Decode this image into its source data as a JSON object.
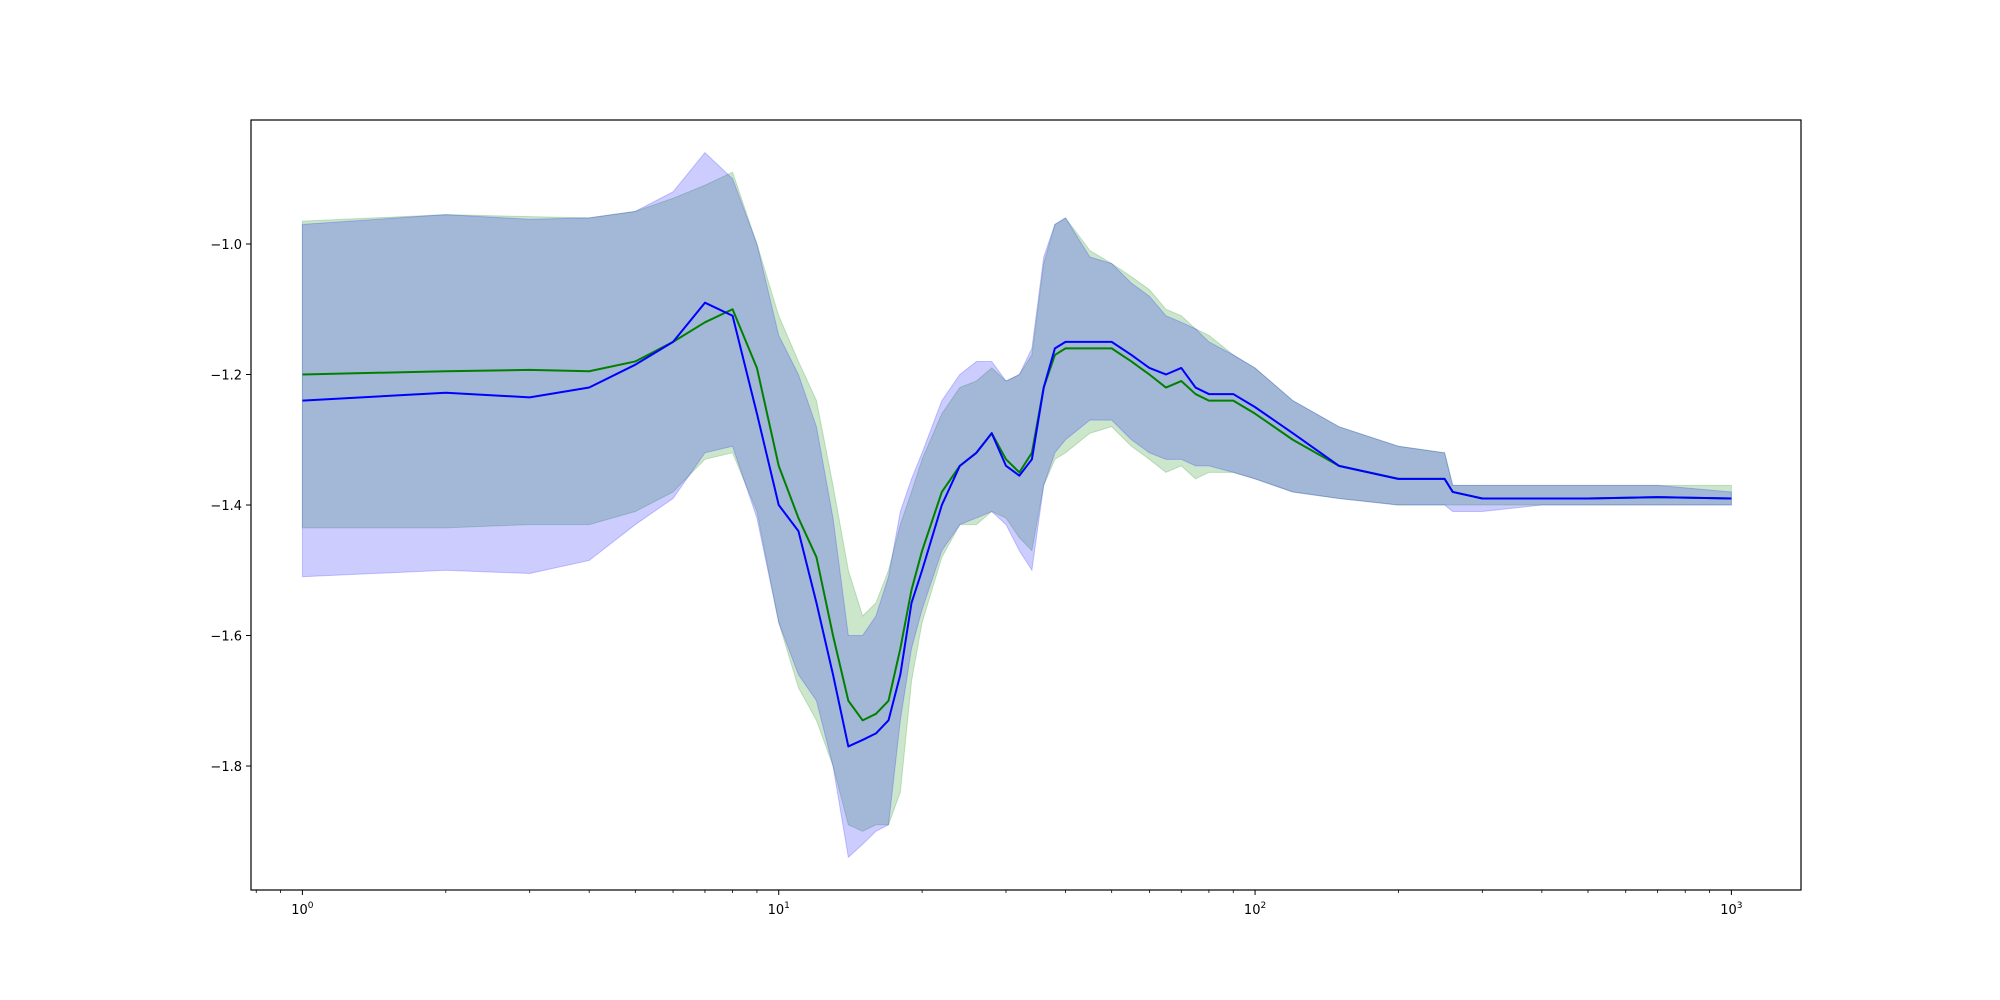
{
  "chart_data": {
    "type": "line",
    "title": "",
    "xlabel": "",
    "ylabel": "",
    "xscale": "log",
    "xlim": [
      0.78,
      1400
    ],
    "ylim": [
      -1.99,
      -0.81
    ],
    "grid": false,
    "legend": "none",
    "x_ticks": [
      {
        "base": "10",
        "exp": "0",
        "value": 1
      },
      {
        "base": "10",
        "exp": "1",
        "value": 10
      },
      {
        "base": "10",
        "exp": "2",
        "value": 100
      },
      {
        "base": "10",
        "exp": "3",
        "value": 1000
      }
    ],
    "y_ticks": [
      {
        "label": "−1.8",
        "value": -1.8
      },
      {
        "label": "−1.6",
        "value": -1.6
      },
      {
        "label": "−1.4",
        "value": -1.4
      },
      {
        "label": "−1.2",
        "value": -1.2
      },
      {
        "label": "−1.0",
        "value": -1.0
      }
    ],
    "series": [
      {
        "color": "#008000",
        "band_color": "#008000",
        "x": [
          1,
          2,
          3,
          4,
          5,
          6,
          7,
          8,
          9,
          10,
          11,
          12,
          13,
          14,
          15,
          16,
          17,
          18,
          19,
          20,
          22,
          24,
          26,
          28,
          30,
          32,
          34,
          36,
          38,
          40,
          45,
          50,
          55,
          60,
          65,
          70,
          75,
          80,
          90,
          100,
          120,
          150,
          200,
          250,
          260,
          300,
          400,
          500,
          700,
          1000
        ],
        "y": [
          -1.2,
          -1.195,
          -1.193,
          -1.195,
          -1.18,
          -1.15,
          -1.12,
          -1.1,
          -1.19,
          -1.34,
          -1.42,
          -1.48,
          -1.6,
          -1.7,
          -1.73,
          -1.72,
          -1.7,
          -1.62,
          -1.53,
          -1.47,
          -1.38,
          -1.34,
          -1.32,
          -1.29,
          -1.33,
          -1.35,
          -1.32,
          -1.22,
          -1.17,
          -1.16,
          -1.16,
          -1.16,
          -1.18,
          -1.2,
          -1.22,
          -1.21,
          -1.23,
          -1.24,
          -1.24,
          -1.26,
          -1.3,
          -1.34,
          -1.36,
          -1.36,
          -1.38,
          -1.39,
          -1.39,
          -1.39,
          -1.388,
          -1.39
        ],
        "upper": [
          -0.965,
          -0.955,
          -0.958,
          -0.96,
          -0.95,
          -0.93,
          -0.91,
          -0.89,
          -1.0,
          -1.11,
          -1.18,
          -1.24,
          -1.37,
          -1.5,
          -1.57,
          -1.55,
          -1.5,
          -1.43,
          -1.38,
          -1.33,
          -1.26,
          -1.22,
          -1.21,
          -1.19,
          -1.21,
          -1.2,
          -1.17,
          -1.03,
          -0.97,
          -0.96,
          -1.01,
          -1.03,
          -1.05,
          -1.07,
          -1.1,
          -1.11,
          -1.13,
          -1.14,
          -1.17,
          -1.19,
          -1.24,
          -1.28,
          -1.31,
          -1.32,
          -1.37,
          -1.37,
          -1.37,
          -1.37,
          -1.37,
          -1.37
        ],
        "lower": [
          -1.435,
          -1.435,
          -1.43,
          -1.43,
          -1.41,
          -1.38,
          -1.33,
          -1.32,
          -1.41,
          -1.58,
          -1.68,
          -1.73,
          -1.8,
          -1.89,
          -1.9,
          -1.89,
          -1.89,
          -1.84,
          -1.67,
          -1.58,
          -1.48,
          -1.43,
          -1.43,
          -1.41,
          -1.42,
          -1.45,
          -1.47,
          -1.37,
          -1.33,
          -1.32,
          -1.29,
          -1.28,
          -1.31,
          -1.33,
          -1.35,
          -1.34,
          -1.36,
          -1.35,
          -1.35,
          -1.36,
          -1.38,
          -1.39,
          -1.4,
          -1.4,
          -1.4,
          -1.4,
          -1.4,
          -1.4,
          -1.4,
          -1.4
        ]
      },
      {
        "color": "#0000ff",
        "band_color": "#0000ff",
        "x": [
          1,
          2,
          3,
          4,
          5,
          6,
          7,
          8,
          9,
          10,
          11,
          12,
          13,
          14,
          15,
          16,
          17,
          18,
          19,
          20,
          22,
          24,
          26,
          28,
          30,
          32,
          34,
          36,
          38,
          40,
          45,
          50,
          55,
          60,
          65,
          70,
          75,
          80,
          90,
          100,
          120,
          150,
          200,
          250,
          260,
          300,
          400,
          500,
          700,
          1000
        ],
        "y": [
          -1.24,
          -1.228,
          -1.235,
          -1.22,
          -1.185,
          -1.15,
          -1.09,
          -1.11,
          -1.26,
          -1.4,
          -1.44,
          -1.55,
          -1.66,
          -1.77,
          -1.76,
          -1.75,
          -1.73,
          -1.66,
          -1.55,
          -1.5,
          -1.4,
          -1.34,
          -1.32,
          -1.29,
          -1.34,
          -1.355,
          -1.33,
          -1.22,
          -1.16,
          -1.15,
          -1.15,
          -1.15,
          -1.17,
          -1.19,
          -1.2,
          -1.19,
          -1.22,
          -1.23,
          -1.23,
          -1.25,
          -1.29,
          -1.34,
          -1.36,
          -1.36,
          -1.38,
          -1.39,
          -1.39,
          -1.39,
          -1.388,
          -1.39
        ],
        "upper": [
          -0.97,
          -0.955,
          -0.962,
          -0.96,
          -0.95,
          -0.92,
          -0.86,
          -0.9,
          -1.0,
          -1.14,
          -1.2,
          -1.28,
          -1.42,
          -1.6,
          -1.6,
          -1.57,
          -1.51,
          -1.41,
          -1.36,
          -1.32,
          -1.24,
          -1.2,
          -1.18,
          -1.18,
          -1.21,
          -1.2,
          -1.16,
          -1.02,
          -0.97,
          -0.96,
          -1.02,
          -1.03,
          -1.06,
          -1.08,
          -1.11,
          -1.12,
          -1.13,
          -1.15,
          -1.17,
          -1.19,
          -1.24,
          -1.28,
          -1.31,
          -1.32,
          -1.37,
          -1.37,
          -1.37,
          -1.37,
          -1.37,
          -1.38
        ],
        "lower": [
          -1.51,
          -1.5,
          -1.505,
          -1.485,
          -1.43,
          -1.39,
          -1.32,
          -1.31,
          -1.42,
          -1.58,
          -1.66,
          -1.7,
          -1.8,
          -1.94,
          -1.92,
          -1.9,
          -1.89,
          -1.73,
          -1.62,
          -1.56,
          -1.47,
          -1.43,
          -1.42,
          -1.41,
          -1.43,
          -1.47,
          -1.5,
          -1.37,
          -1.32,
          -1.3,
          -1.27,
          -1.27,
          -1.3,
          -1.32,
          -1.33,
          -1.33,
          -1.34,
          -1.34,
          -1.35,
          -1.36,
          -1.38,
          -1.39,
          -1.4,
          -1.4,
          -1.41,
          -1.41,
          -1.4,
          -1.4,
          -1.4,
          -1.4
        ]
      }
    ]
  }
}
